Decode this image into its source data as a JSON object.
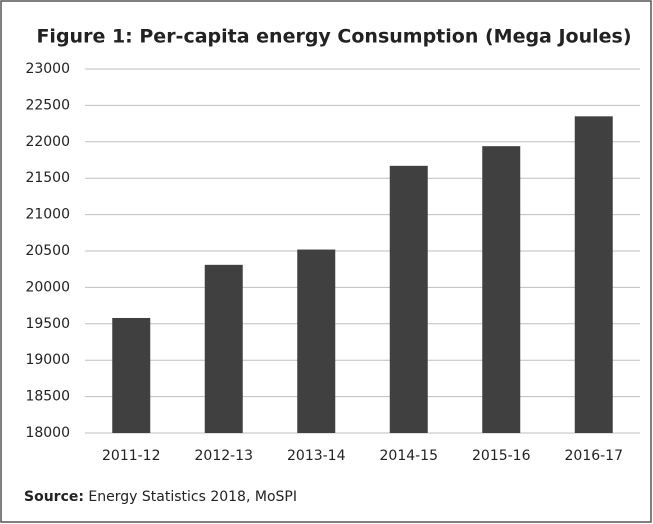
{
  "chart_data": {
    "type": "bar",
    "title": "Figure 1: Per-capita energy Consumption (Mega Joules)",
    "categories": [
      "2011-12",
      "2012-13",
      "2013-14",
      "2014-15",
      "2015-16",
      "2016-17"
    ],
    "values": [
      19580,
      20310,
      20520,
      21670,
      21940,
      22350
    ],
    "color": "#404040",
    "ylim": [
      18000,
      23000
    ],
    "yticks": [
      18000,
      18500,
      19000,
      19500,
      20000,
      20500,
      21000,
      21500,
      22000,
      22500,
      23000
    ],
    "grid": true,
    "source_label": "Source:",
    "source": "Energy Statistics 2018, MoSPI"
  }
}
